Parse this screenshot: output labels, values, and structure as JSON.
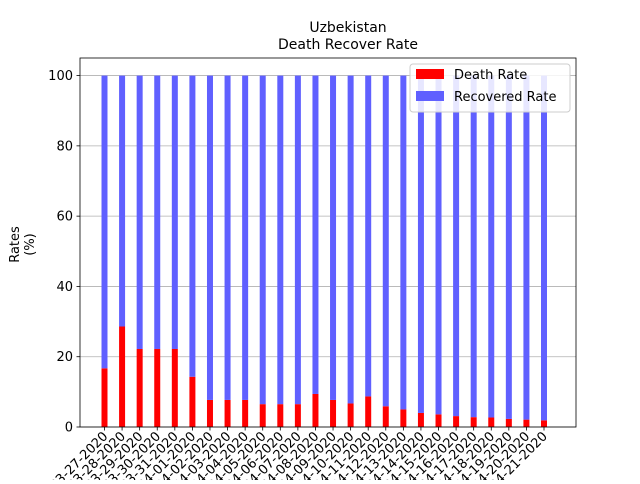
{
  "chart_data": {
    "type": "bar",
    "stacked": true,
    "title": "Uzbekistan",
    "subtitle": "Death Recover Rate",
    "xlabel": "",
    "ylabel": "Rates\n(%)",
    "ylim": [
      0,
      105
    ],
    "yticks": [
      0,
      20,
      40,
      60,
      80,
      100
    ],
    "grid": "y",
    "legend_position": "top-right",
    "categories": [
      "03-27-2020",
      "03-28-2020",
      "03-29-2020",
      "03-30-2020",
      "03-31-2020",
      "04-01-2020",
      "04-02-2020",
      "04-03-2020",
      "04-04-2020",
      "04-05-2020",
      "04-06-2020",
      "04-07-2020",
      "04-08-2020",
      "04-09-2020",
      "04-10-2020",
      "04-11-2020",
      "04-12-2020",
      "04-13-2020",
      "04-14-2020",
      "04-15-2020",
      "04-16-2020",
      "04-17-2020",
      "04-18-2020",
      "04-19-2020",
      "04-20-2020",
      "04-21-2020"
    ],
    "series": [
      {
        "name": "Death Rate",
        "color": "#ff0000",
        "values": [
          16.7,
          28.6,
          22.2,
          22.2,
          22.2,
          14.3,
          7.7,
          7.7,
          7.7,
          6.5,
          6.5,
          6.5,
          9.4,
          7.7,
          6.7,
          8.7,
          5.9,
          5.0,
          4.0,
          3.6,
          3.1,
          2.8,
          2.7,
          2.3,
          2.1,
          1.9
        ]
      },
      {
        "name": "Recovered Rate",
        "color": "#6060ff",
        "values": [
          83.3,
          71.4,
          77.8,
          77.8,
          77.8,
          85.7,
          92.3,
          92.3,
          92.3,
          93.5,
          93.5,
          93.5,
          90.6,
          92.3,
          93.3,
          91.3,
          94.1,
          95.0,
          96.0,
          96.4,
          96.9,
          97.2,
          97.3,
          97.7,
          97.9,
          98.1
        ]
      }
    ]
  }
}
